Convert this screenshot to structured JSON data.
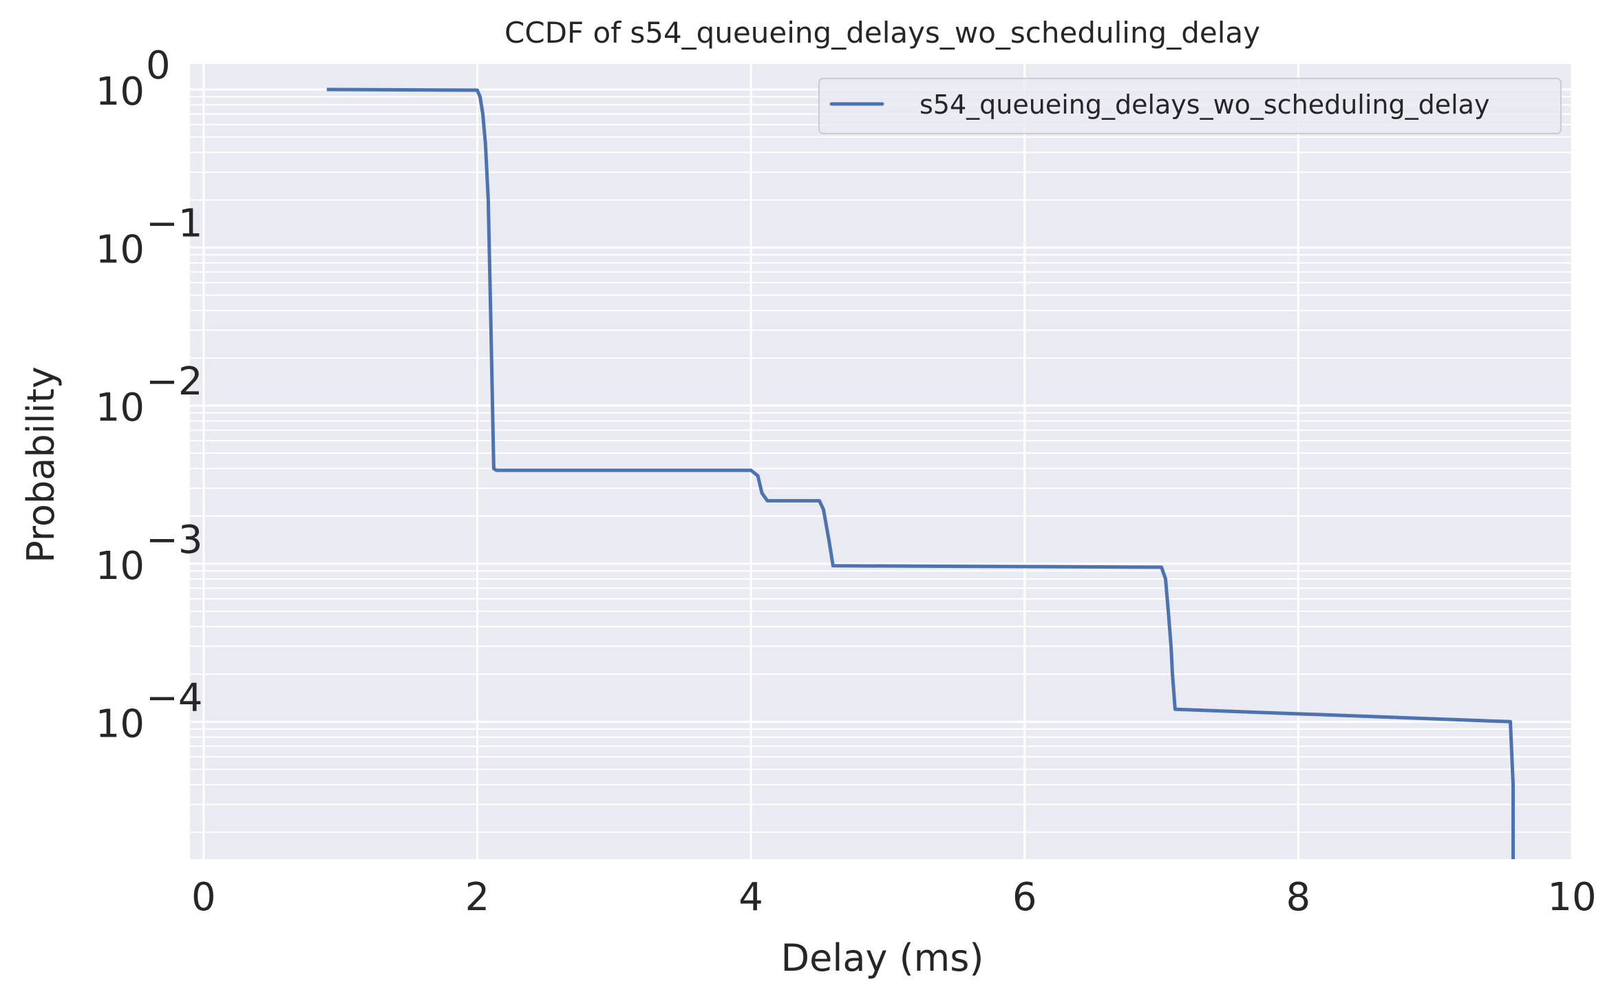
{
  "chart_data": {
    "type": "line",
    "title": "CCDF of s54_queueing_delays_wo_scheduling_delay",
    "xlabel": "Delay (ms)",
    "ylabel": "Probability",
    "xlim": [
      -0.1,
      10.0
    ],
    "ylim": [
      1.35e-05,
      1.45
    ],
    "xscale": "linear",
    "yscale": "log",
    "xticks": [
      0,
      2,
      4,
      6,
      8,
      10
    ],
    "xtick_labels": [
      "0",
      "2",
      "4",
      "6",
      "8",
      "10"
    ],
    "yticks": [
      {
        "value": 1,
        "base": "10",
        "exp": "0"
      },
      {
        "value": 0.1,
        "base": "10",
        "exp": "−1"
      },
      {
        "value": 0.01,
        "base": "10",
        "exp": "−2"
      },
      {
        "value": 0.001,
        "base": "10",
        "exp": "−3"
      },
      {
        "value": 0.0001,
        "base": "10",
        "exp": "−4"
      }
    ],
    "grid": true,
    "legend_position": "top-right",
    "background_color": "#eaeaf2",
    "series": [
      {
        "name": "s54_queueing_delays_wo_scheduling_delay",
        "color": "#4c72b0",
        "x": [
          0.9,
          2.0,
          2.02,
          2.04,
          2.06,
          2.08,
          2.1,
          2.12,
          2.14,
          4.0,
          4.05,
          4.08,
          4.12,
          4.5,
          4.53,
          4.57,
          4.6,
          7.0,
          7.03,
          7.05,
          7.07,
          7.08,
          7.1,
          9.55,
          9.57,
          9.57
        ],
        "y": [
          1.0,
          0.99,
          0.9,
          0.7,
          0.45,
          0.2,
          0.03,
          0.004,
          0.0039,
          0.0039,
          0.0036,
          0.0028,
          0.0025,
          0.0025,
          0.0022,
          0.0014,
          0.00097,
          0.00095,
          0.0008,
          0.0005,
          0.0003,
          0.0002,
          0.00012,
          0.0001,
          4e-05,
          1.35e-05
        ]
      }
    ]
  }
}
